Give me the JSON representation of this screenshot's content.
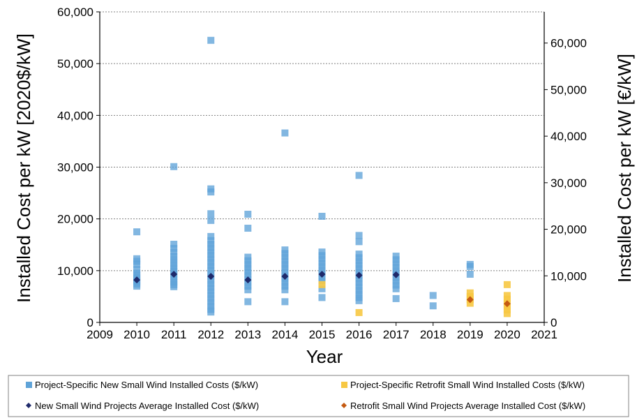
{
  "chart_data": {
    "type": "scatter",
    "xlabel": "Year",
    "ylabel_left": "Installed Cost per kW [2020$/kW]",
    "ylabel_right": "Installed Cost per kW [€/kW]",
    "x_ticks": [
      "2009",
      "2010",
      "2011",
      "2012",
      "2013",
      "2014",
      "2015",
      "2016",
      "2017",
      "2018",
      "2019",
      "2020",
      "2021"
    ],
    "xlim": [
      2009,
      2021
    ],
    "y_left_ticks": [
      "0",
      "10,000",
      "20,000",
      "30,000",
      "40,000",
      "50,000",
      "60,000"
    ],
    "ylim_left": [
      0,
      60000
    ],
    "y_right_ticks": [
      "0",
      "10,000",
      "20,000",
      "30,000",
      "40,000",
      "50,000",
      "60,000"
    ],
    "y_right_values": [
      0,
      10000,
      20000,
      30000,
      40000,
      50000,
      60000
    ],
    "grid": "horizontal",
    "legend_position": "bottom",
    "colors": {
      "new_points": "#5fa3d8",
      "new_points_dense": "#1a6fbf",
      "retrofit_points": "#f7c843",
      "new_avg": "#1f2a6b",
      "retrofit_avg": "#c55a11",
      "grid": "#808080"
    },
    "series": [
      {
        "name": "Project-Specific New Small Wind Installed Costs ($/kW)",
        "marker": "square",
        "color": "#5fa3d8",
        "points": [
          {
            "x": 2010,
            "y": 17500
          },
          {
            "x": 2010,
            "y": 12300
          },
          {
            "x": 2010,
            "y": 11800
          },
          {
            "x": 2010,
            "y": 11200
          },
          {
            "x": 2010,
            "y": 10200
          },
          {
            "x": 2010,
            "y": 9500
          },
          {
            "x": 2010,
            "y": 9000
          },
          {
            "x": 2010,
            "y": 8600
          },
          {
            "x": 2010,
            "y": 8200
          },
          {
            "x": 2010,
            "y": 7800
          },
          {
            "x": 2010,
            "y": 7400
          },
          {
            "x": 2010,
            "y": 7000
          },
          {
            "x": 2011,
            "y": 30100
          },
          {
            "x": 2011,
            "y": 15100
          },
          {
            "x": 2011,
            "y": 14300
          },
          {
            "x": 2011,
            "y": 13600
          },
          {
            "x": 2011,
            "y": 12800
          },
          {
            "x": 2011,
            "y": 12200
          },
          {
            "x": 2011,
            "y": 11500
          },
          {
            "x": 2011,
            "y": 10900
          },
          {
            "x": 2011,
            "y": 10300
          },
          {
            "x": 2011,
            "y": 9800
          },
          {
            "x": 2011,
            "y": 9300
          },
          {
            "x": 2011,
            "y": 8800
          },
          {
            "x": 2011,
            "y": 8300
          },
          {
            "x": 2011,
            "y": 7800
          },
          {
            "x": 2011,
            "y": 7300
          },
          {
            "x": 2011,
            "y": 6900
          },
          {
            "x": 2012,
            "y": 54500
          },
          {
            "x": 2012,
            "y": 25800
          },
          {
            "x": 2012,
            "y": 25200
          },
          {
            "x": 2012,
            "y": 21000
          },
          {
            "x": 2012,
            "y": 19700
          },
          {
            "x": 2012,
            "y": 16600
          },
          {
            "x": 2012,
            "y": 15800
          },
          {
            "x": 2012,
            "y": 15100
          },
          {
            "x": 2012,
            "y": 14400
          },
          {
            "x": 2012,
            "y": 13700
          },
          {
            "x": 2012,
            "y": 13000
          },
          {
            "x": 2012,
            "y": 12300
          },
          {
            "x": 2012,
            "y": 11600
          },
          {
            "x": 2012,
            "y": 10900
          },
          {
            "x": 2012,
            "y": 10200
          },
          {
            "x": 2012,
            "y": 9500
          },
          {
            "x": 2012,
            "y": 8800
          },
          {
            "x": 2012,
            "y": 8100
          },
          {
            "x": 2012,
            "y": 7400
          },
          {
            "x": 2012,
            "y": 6700
          },
          {
            "x": 2012,
            "y": 6000
          },
          {
            "x": 2012,
            "y": 5300
          },
          {
            "x": 2012,
            "y": 4600
          },
          {
            "x": 2012,
            "y": 3900
          },
          {
            "x": 2012,
            "y": 3200
          },
          {
            "x": 2012,
            "y": 2500
          },
          {
            "x": 2012,
            "y": 2000
          },
          {
            "x": 2013,
            "y": 20900
          },
          {
            "x": 2013,
            "y": 18200
          },
          {
            "x": 2013,
            "y": 12600
          },
          {
            "x": 2013,
            "y": 11900
          },
          {
            "x": 2013,
            "y": 11200
          },
          {
            "x": 2013,
            "y": 10500
          },
          {
            "x": 2013,
            "y": 9800
          },
          {
            "x": 2013,
            "y": 9100
          },
          {
            "x": 2013,
            "y": 8400
          },
          {
            "x": 2013,
            "y": 7700
          },
          {
            "x": 2013,
            "y": 7000
          },
          {
            "x": 2013,
            "y": 6300
          },
          {
            "x": 2013,
            "y": 4000
          },
          {
            "x": 2014,
            "y": 36600
          },
          {
            "x": 2014,
            "y": 14000
          },
          {
            "x": 2014,
            "y": 13300
          },
          {
            "x": 2014,
            "y": 12600
          },
          {
            "x": 2014,
            "y": 11900
          },
          {
            "x": 2014,
            "y": 11200
          },
          {
            "x": 2014,
            "y": 10500
          },
          {
            "x": 2014,
            "y": 9800
          },
          {
            "x": 2014,
            "y": 9100
          },
          {
            "x": 2014,
            "y": 8400
          },
          {
            "x": 2014,
            "y": 7700
          },
          {
            "x": 2014,
            "y": 7000
          },
          {
            "x": 2014,
            "y": 6300
          },
          {
            "x": 2014,
            "y": 4000
          },
          {
            "x": 2015,
            "y": 20500
          },
          {
            "x": 2015,
            "y": 13600
          },
          {
            "x": 2015,
            "y": 12900
          },
          {
            "x": 2015,
            "y": 12200
          },
          {
            "x": 2015,
            "y": 11500
          },
          {
            "x": 2015,
            "y": 10800
          },
          {
            "x": 2015,
            "y": 10100
          },
          {
            "x": 2015,
            "y": 9400
          },
          {
            "x": 2015,
            "y": 8700
          },
          {
            "x": 2015,
            "y": 8000
          },
          {
            "x": 2015,
            "y": 6500
          },
          {
            "x": 2015,
            "y": 4800
          },
          {
            "x": 2016,
            "y": 28400
          },
          {
            "x": 2016,
            "y": 16800
          },
          {
            "x": 2016,
            "y": 15600
          },
          {
            "x": 2016,
            "y": 13200
          },
          {
            "x": 2016,
            "y": 12500
          },
          {
            "x": 2016,
            "y": 11800
          },
          {
            "x": 2016,
            "y": 11100
          },
          {
            "x": 2016,
            "y": 10400
          },
          {
            "x": 2016,
            "y": 9700
          },
          {
            "x": 2016,
            "y": 9000
          },
          {
            "x": 2016,
            "y": 8300
          },
          {
            "x": 2016,
            "y": 7600
          },
          {
            "x": 2016,
            "y": 6900
          },
          {
            "x": 2016,
            "y": 6200
          },
          {
            "x": 2016,
            "y": 5500
          },
          {
            "x": 2016,
            "y": 4800
          },
          {
            "x": 2016,
            "y": 4200
          },
          {
            "x": 2017,
            "y": 12800
          },
          {
            "x": 2017,
            "y": 12100
          },
          {
            "x": 2017,
            "y": 11400
          },
          {
            "x": 2017,
            "y": 10700
          },
          {
            "x": 2017,
            "y": 10000
          },
          {
            "x": 2017,
            "y": 9300
          },
          {
            "x": 2017,
            "y": 8600
          },
          {
            "x": 2017,
            "y": 7900
          },
          {
            "x": 2017,
            "y": 7200
          },
          {
            "x": 2017,
            "y": 6500
          },
          {
            "x": 2017,
            "y": 4600
          },
          {
            "x": 2018,
            "y": 5200
          },
          {
            "x": 2018,
            "y": 3200
          },
          {
            "x": 2019,
            "y": 11200
          },
          {
            "x": 2019,
            "y": 10800
          },
          {
            "x": 2019,
            "y": 9300
          }
        ]
      },
      {
        "name": "Project-Specific Retrofit Small Wind Installed Costs ($/kW)",
        "marker": "square",
        "color": "#f7c843",
        "points": [
          {
            "x": 2015,
            "y": 7300
          },
          {
            "x": 2016,
            "y": 1900
          },
          {
            "x": 2019,
            "y": 5700
          },
          {
            "x": 2019,
            "y": 5000
          },
          {
            "x": 2019,
            "y": 4400
          },
          {
            "x": 2019,
            "y": 3700
          },
          {
            "x": 2020,
            "y": 7300
          },
          {
            "x": 2020,
            "y": 5200
          },
          {
            "x": 2020,
            "y": 4500
          },
          {
            "x": 2020,
            "y": 3800
          },
          {
            "x": 2020,
            "y": 3100
          },
          {
            "x": 2020,
            "y": 2400
          },
          {
            "x": 2020,
            "y": 1700
          }
        ]
      },
      {
        "name": "New Small Wind Projects Average Installed Cost ($/kW)",
        "marker": "diamond",
        "color": "#1f2a6b",
        "points": [
          {
            "x": 2010,
            "y": 8200
          },
          {
            "x": 2011,
            "y": 9300
          },
          {
            "x": 2012,
            "y": 8900
          },
          {
            "x": 2013,
            "y": 8200
          },
          {
            "x": 2014,
            "y": 8900
          },
          {
            "x": 2015,
            "y": 9300
          },
          {
            "x": 2016,
            "y": 9100
          },
          {
            "x": 2017,
            "y": 9200
          }
        ]
      },
      {
        "name": "Retrofit Small Wind Projects Average Installed Cost ($/kW)",
        "marker": "diamond",
        "color": "#c55a11",
        "points": [
          {
            "x": 2019,
            "y": 4400
          },
          {
            "x": 2020,
            "y": 3600
          }
        ]
      }
    ]
  }
}
